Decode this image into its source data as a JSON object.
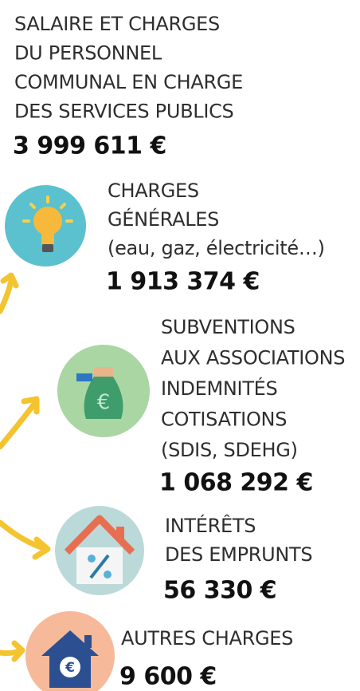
{
  "items": [
    {
      "lines": [
        "SALAIRE ET CHARGES",
        "DU PERSONNEL",
        "COMMUNAL EN CHARGE",
        "DES SERVICES PUBLICS"
      ],
      "amount": "3 999 611 €"
    },
    {
      "lines": [
        "CHARGES",
        "GÉNÉRALES",
        "(eau, gaz, électricité…)"
      ],
      "amount": "1 913 374 €"
    },
    {
      "lines": [
        "SUBVENTIONS",
        "AUX ASSOCIATIONS",
        "INDEMNITÉS",
        "COTISATIONS",
        "(SDIS, SDEHG)"
      ],
      "amount": "1 068 292 €"
    },
    {
      "lines": [
        "INTÉRÊTS",
        "DES EMPRUNTS"
      ],
      "amount": "56 330 €"
    },
    {
      "lines": [
        "AUTRES CHARGES"
      ],
      "amount": "9 600 €"
    }
  ]
}
